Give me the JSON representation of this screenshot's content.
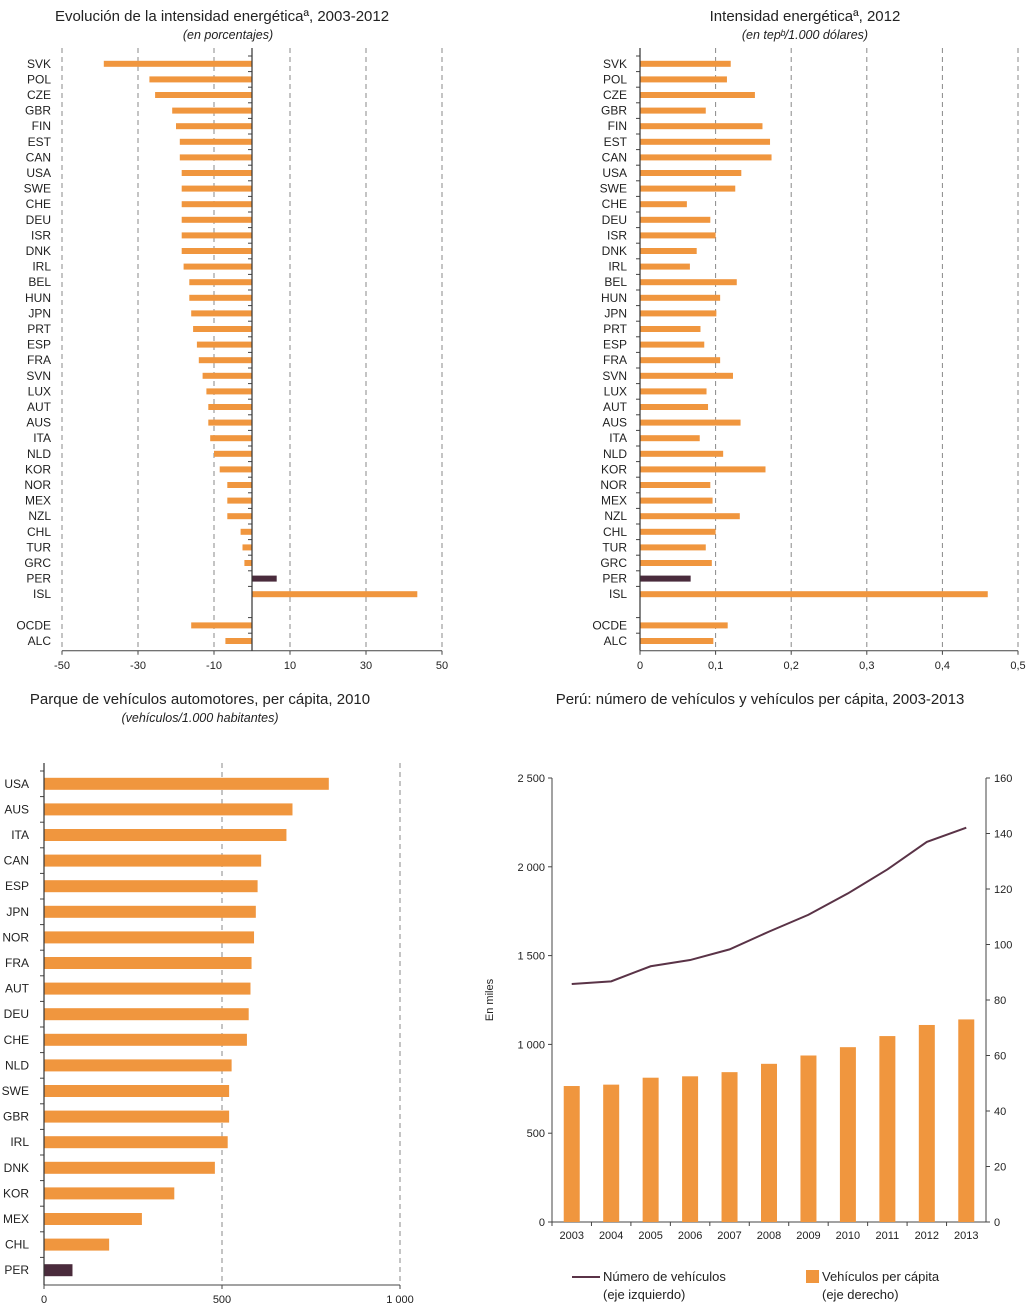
{
  "colors": {
    "bar": "#f0963e",
    "highlight": "#4a2b3c",
    "line": "#5a3347",
    "grid": "#888888"
  },
  "chart_data": [
    {
      "type": "bar",
      "orientation": "horizontal",
      "title": "Evolución de la intensidad energéticaª, 2003-2012",
      "subtitle": "(en porcentajes)",
      "categories": [
        "SVK",
        "POL",
        "CZE",
        "GBR",
        "FIN",
        "EST",
        "CAN",
        "USA",
        "SWE",
        "CHE",
        "DEU",
        "ISR",
        "DNK",
        "IRL",
        "BEL",
        "HUN",
        "JPN",
        "PRT",
        "ESP",
        "FRA",
        "SVN",
        "LUX",
        "AUT",
        "AUS",
        "ITA",
        "NLD",
        "KOR",
        "NOR",
        "MEX",
        "NZL",
        "CHL",
        "TUR",
        "GRC",
        "PER",
        "ISL",
        "",
        "OCDE",
        "ALC"
      ],
      "values": [
        -39,
        -27,
        -25.5,
        -21,
        -20,
        -19,
        -19,
        -18.5,
        -18.5,
        -18.5,
        -18.5,
        -18.5,
        -18.5,
        -18,
        -16.5,
        -16.5,
        -16,
        -15.5,
        -14.5,
        -14,
        -13,
        -12,
        -11.5,
        -11.5,
        -11,
        -10,
        -8.5,
        -6.5,
        -6.5,
        -6.5,
        -3,
        -2.5,
        -2,
        6.5,
        43.5,
        null,
        -16,
        -7
      ],
      "highlight": [
        "PER"
      ],
      "xlim": [
        -50,
        50
      ],
      "xticks": [
        "-50",
        "-30",
        "-10",
        "10",
        "30",
        "50"
      ],
      "grid": "vertical dashed"
    },
    {
      "type": "bar",
      "orientation": "horizontal",
      "title": "Intensidad energéticaª, 2012",
      "subtitle": "(en tepᵇ/1.000 dólares)",
      "categories": [
        "SVK",
        "POL",
        "CZE",
        "GBR",
        "FIN",
        "EST",
        "CAN",
        "USA",
        "SWE",
        "CHE",
        "DEU",
        "ISR",
        "DNK",
        "IRL",
        "BEL",
        "HUN",
        "JPN",
        "PRT",
        "ESP",
        "FRA",
        "SVN",
        "LUX",
        "AUT",
        "AUS",
        "ITA",
        "NLD",
        "KOR",
        "NOR",
        "MEX",
        "NZL",
        "CHL",
        "TUR",
        "GRC",
        "PER",
        "ISL",
        "",
        "OCDE",
        "ALC"
      ],
      "values": [
        0.12,
        0.115,
        0.152,
        0.087,
        0.162,
        0.172,
        0.174,
        0.134,
        0.126,
        0.062,
        0.093,
        0.1,
        0.075,
        0.066,
        0.128,
        0.106,
        0.101,
        0.08,
        0.085,
        0.106,
        0.123,
        0.088,
        0.09,
        0.133,
        0.079,
        0.11,
        0.166,
        0.093,
        0.096,
        0.132,
        0.1,
        0.087,
        0.095,
        0.067,
        0.46,
        null,
        0.116,
        0.097
      ],
      "highlight": [
        "PER"
      ],
      "xlim": [
        0,
        0.5
      ],
      "xticks": [
        "0",
        "0,1",
        "0,2",
        "0,3",
        "0,4",
        "0,5"
      ],
      "grid": "vertical dashed"
    },
    {
      "type": "bar",
      "orientation": "horizontal",
      "title": "Parque de vehículos automotores, per cápita, 2010",
      "subtitle": "(vehículos/1.000 habitantes)",
      "categories": [
        "USA",
        "AUS",
        "ITA",
        "CAN",
        "ESP",
        "JPN",
        "NOR",
        "FRA",
        "AUT",
        "DEU",
        "CHE",
        "NLD",
        "SWE",
        "GBR",
        "IRL",
        "DNK",
        "KOR",
        "MEX",
        "CHL",
        "PER"
      ],
      "values": [
        800,
        698,
        681,
        610,
        600,
        595,
        590,
        583,
        580,
        575,
        570,
        527,
        520,
        520,
        516,
        480,
        366,
        275,
        183,
        80
      ],
      "highlight": [
        "PER"
      ],
      "xlim": [
        0,
        1000
      ],
      "xticks": [
        "0",
        "500",
        "1 000"
      ],
      "grid": "vertical dashed"
    },
    {
      "type": "bar+line",
      "title": "Perú: número de vehículos y vehículos per cápita, 2003-2013",
      "categories": [
        "2003",
        "2004",
        "2005",
        "2006",
        "2007",
        "2008",
        "2009",
        "2010",
        "2011",
        "2012",
        "2013"
      ],
      "series": [
        {
          "name": "Número de vehículos",
          "legend_sub": "(eje izquierdo)",
          "type": "line",
          "axis": "left",
          "values": [
            1340,
            1355,
            1440,
            1475,
            1535,
            1635,
            1730,
            1850,
            1985,
            2140,
            2220
          ]
        },
        {
          "name": "Vehículos per cápita",
          "legend_sub": "(eje derecho)",
          "type": "bar",
          "axis": "right",
          "values": [
            49,
            49.5,
            52,
            52.5,
            54,
            57,
            60,
            63,
            67,
            71,
            73
          ]
        }
      ],
      "ylabel_left": "En miles",
      "ylim_left": [
        0,
        2500
      ],
      "yticks_left": [
        "0",
        "500",
        "1 000",
        "1 500",
        "2 000",
        "2 500"
      ],
      "ylim_right": [
        0,
        160
      ],
      "yticks_right": [
        "0",
        "20",
        "40",
        "60",
        "80",
        "100",
        "120",
        "140",
        "160"
      ]
    }
  ]
}
